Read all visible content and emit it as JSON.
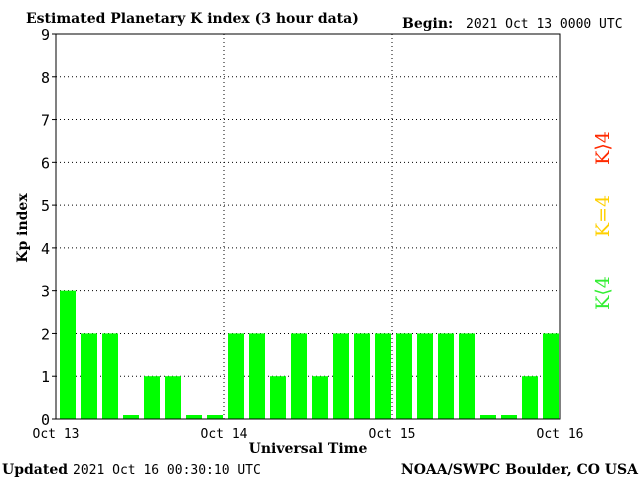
{
  "header": {
    "title": "Estimated Planetary K index (3 hour data)",
    "begin_label": "Begin:",
    "begin_value": "2021 Oct 13 0000 UTC"
  },
  "footer": {
    "updated_label": "Updated",
    "updated_value": "2021 Oct 16 00:30:10 UTC",
    "source": "NOAA/SWPC Boulder, CO USA"
  },
  "legend": {
    "high": {
      "text": "K⟩4",
      "color": "#ff2a00"
    },
    "equal": {
      "text": "K=4",
      "color": "#ffd000"
    },
    "low": {
      "text": "K⟨4",
      "color": "#33ee33"
    }
  },
  "chart_data": {
    "type": "bar",
    "xlabel": "Universal Time",
    "ylabel": "Kp index",
    "ylim": [
      0,
      9
    ],
    "yticks": [
      "0",
      "1",
      "2",
      "3",
      "4",
      "5",
      "6",
      "7",
      "8",
      "9"
    ],
    "xticks": [
      "Oct 13",
      "Oct 14",
      "Oct 15",
      "Oct 16"
    ],
    "grid": true,
    "bar_color": "#00ff00",
    "values": [
      3,
      2,
      2,
      0,
      1,
      1,
      0,
      0,
      2,
      2,
      1,
      2,
      1,
      2,
      2,
      2,
      2,
      2,
      2,
      2,
      0,
      0,
      1,
      2
    ]
  }
}
